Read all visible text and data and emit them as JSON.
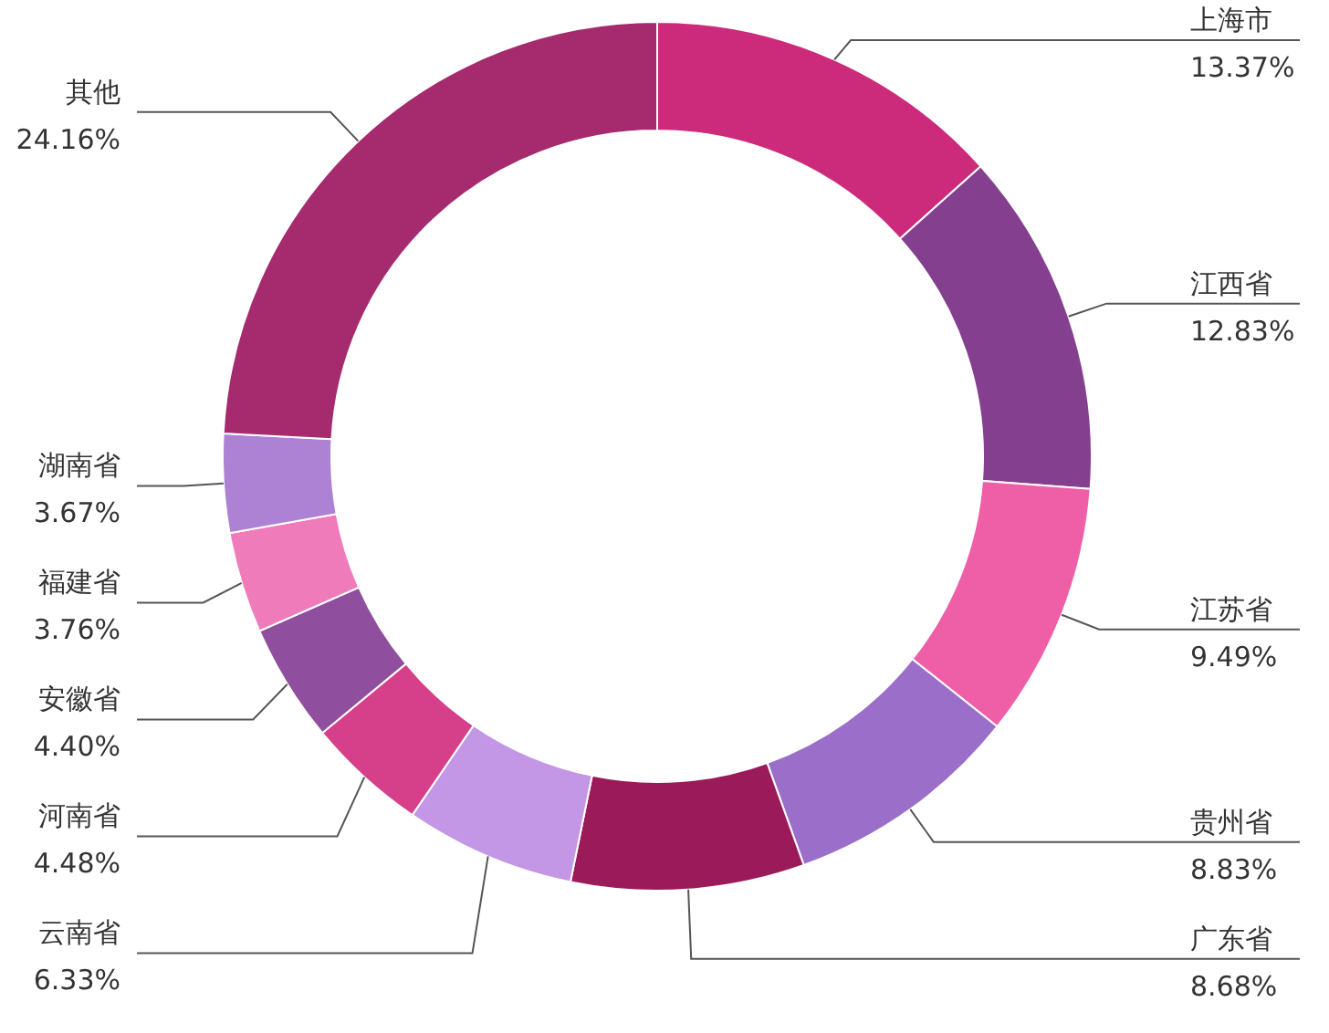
{
  "chart_data": {
    "type": "donut",
    "categories": [
      "上海市",
      "江西省",
      "江苏省",
      "贵州省",
      "广东省",
      "云南省",
      "河南省",
      "安徽省",
      "福建省",
      "湖南省",
      "其他"
    ],
    "values": [
      13.37,
      12.83,
      9.49,
      8.83,
      8.68,
      6.33,
      4.48,
      4.4,
      3.76,
      3.67,
      24.16
    ],
    "colors": [
      "#cc2a7a",
      "#843f8f",
      "#ee5fa8",
      "#9b6fc9",
      "#9b1a5a",
      "#c397e6",
      "#d63f8a",
      "#8f4f9e",
      "#f07bbb",
      "#ad82d4",
      "#a52b6e"
    ],
    "value_labels": [
      "13.37%",
      "12.83%",
      "9.49%",
      "8.83%",
      "8.68%",
      "6.33%",
      "4.48%",
      "4.40%",
      "3.76%",
      "3.67%",
      "24.16%"
    ]
  }
}
